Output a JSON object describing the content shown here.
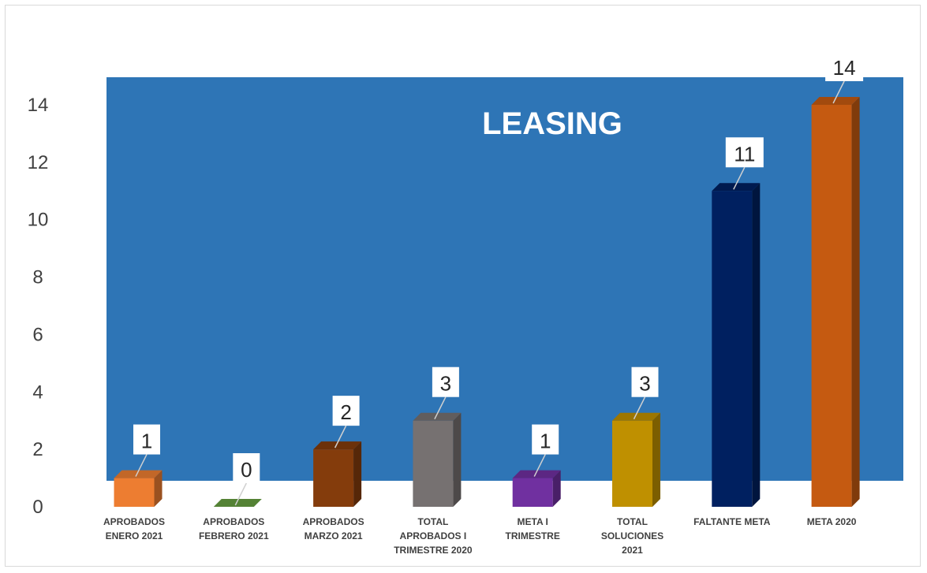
{
  "chart_data": {
    "type": "bar",
    "title": "LEASING",
    "categories": [
      [
        "APROBADOS",
        "ENERO 2021"
      ],
      [
        "APROBADOS",
        "FEBRERO 2021"
      ],
      [
        "APROBADOS",
        "MARZO 2021"
      ],
      [
        "TOTAL",
        "APROBADOS I",
        "TRIMESTRE 2020"
      ],
      [
        "META I",
        "TRIMESTRE"
      ],
      [
        "TOTAL",
        "SOLUCIONES",
        "2021"
      ],
      [
        "FALTANTE META"
      ],
      [
        "META 2020"
      ]
    ],
    "values": [
      1,
      0,
      2,
      3,
      1,
      3,
      11,
      14
    ],
    "data_labels": [
      "1",
      "0",
      "2",
      "3",
      "1",
      "3",
      "11",
      "14"
    ],
    "colors": [
      "#ED7D31",
      "#548235",
      "#843C0C",
      "#767171",
      "#7030A0",
      "#BF9000",
      "#002060",
      "#C55A11"
    ],
    "background_color": "#2E75B6",
    "ylim": [
      0,
      14
    ],
    "yticks": [
      0,
      2,
      4,
      6,
      8,
      10,
      12,
      14
    ],
    "grid": false,
    "legend": "none"
  }
}
